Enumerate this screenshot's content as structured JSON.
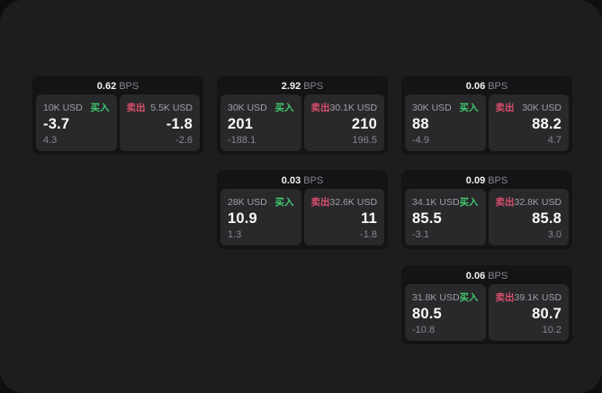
{
  "labels": {
    "buy": "买入",
    "sell": "卖出",
    "bps_unit": "BPS"
  },
  "colors": {
    "buy": "#41c96d",
    "sell": "#d94f6c"
  },
  "cards": [
    {
      "row": 1,
      "col": 1,
      "bps": "0.62",
      "buy": {
        "notional": "10K USD",
        "price": "-3.7",
        "delta": "4.3"
      },
      "sell": {
        "notional": "5.5K USD",
        "price": "-1.8",
        "delta": "-2.6"
      }
    },
    {
      "row": 1,
      "col": 2,
      "bps": "2.92",
      "buy": {
        "notional": "30K USD",
        "price": "201",
        "delta": "-188.1"
      },
      "sell": {
        "notional": "30.1K USD",
        "price": "210",
        "delta": "196.5"
      }
    },
    {
      "row": 1,
      "col": 3,
      "bps": "0.06",
      "buy": {
        "notional": "30K USD",
        "price": "88",
        "delta": "-4.9"
      },
      "sell": {
        "notional": "30K USD",
        "price": "88.2",
        "delta": "4.7"
      }
    },
    {
      "row": 2,
      "col": 2,
      "bps": "0.03",
      "buy": {
        "notional": "28K USD",
        "price": "10.9",
        "delta": "1.3"
      },
      "sell": {
        "notional": "32.6K USD",
        "price": "11",
        "delta": "-1.8"
      }
    },
    {
      "row": 2,
      "col": 3,
      "bps": "0.09",
      "buy": {
        "notional": "34.1K USD",
        "price": "85.5",
        "delta": "-3.1"
      },
      "sell": {
        "notional": "32.8K USD",
        "price": "85.8",
        "delta": "3.0"
      }
    },
    {
      "row": 3,
      "col": 3,
      "bps": "0.06",
      "buy": {
        "notional": "31.8K USD",
        "price": "80.5",
        "delta": "-10.8"
      },
      "sell": {
        "notional": "39.1K USD",
        "price": "80.7",
        "delta": "10.2"
      }
    }
  ]
}
